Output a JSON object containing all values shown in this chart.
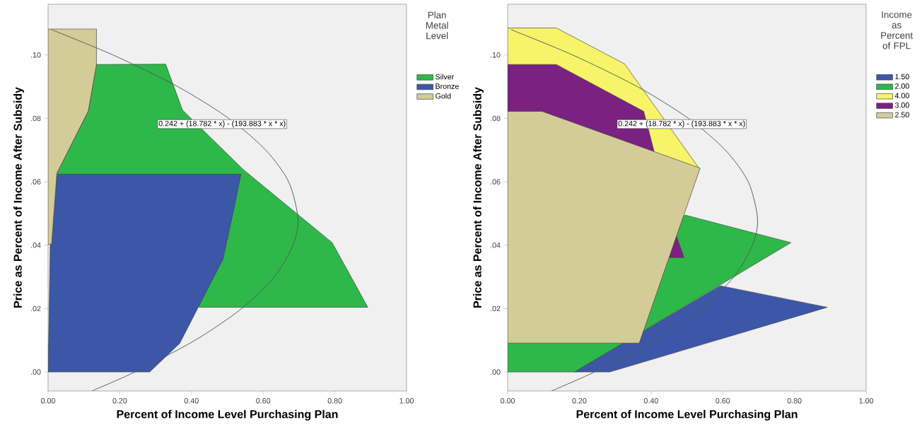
{
  "chart_data": [
    {
      "type": "area",
      "xlabel": "Percent of Income Level Purchasing Plan",
      "ylabel": "Price as Percent of Income After Subsidy",
      "legend_title": "Plan Metal Level",
      "legend": "right",
      "grid": false,
      "annotations": [
        "0.242 + (18.782 * x) - (193.883 * x * x)"
      ],
      "xlim": [
        0,
        1
      ],
      "ylim": [
        -0.006,
        0.116
      ],
      "xticks": [
        {
          "value": 0,
          "label": "0.00"
        },
        {
          "value": 0.2,
          "label": "0.20"
        },
        {
          "value": 0.4,
          "label": "0.40"
        },
        {
          "value": 0.6,
          "label": "0.60"
        },
        {
          "value": 0.8,
          "label": "0.80"
        },
        {
          "value": 1,
          "label": "1.00"
        }
      ],
      "yticks": [
        {
          "value": 0,
          "label": ".00"
        },
        {
          "value": 0.02,
          "label": ".02"
        },
        {
          "value": 0.04,
          "label": ".04"
        },
        {
          "value": 0.06,
          "label": ".06"
        },
        {
          "value": 0.08,
          "label": ".08"
        },
        {
          "value": 0.1,
          "label": ".10"
        }
      ],
      "series": [
        {
          "name": "Silver",
          "color": "#2eb84a",
          "x": [
            0.135,
            0.328,
            0.375,
            0.545,
            0.7925,
            0.892,
            0.422,
            0.0245,
            0.112
          ],
          "values": [
            0.097,
            0.0971,
            0.0826,
            0.0638,
            0.0408,
            0.0204,
            0.0204,
            0.0627,
            0.0823
          ]
        },
        {
          "name": "Bronze",
          "color": "#3c57a8",
          "x": [
            0,
            0.2835,
            0.367,
            0.488,
            0.52,
            0.538,
            0.0245,
            0.006
          ],
          "values": [
            0,
            0,
            0.009,
            0.0356,
            0.0524,
            0.0624,
            0.0624,
            0.0403
          ]
        },
        {
          "name": "Gold",
          "color": "#d4cc98",
          "x": [
            0,
            0.135,
            0.135,
            0.112,
            0.0245,
            0.0098,
            0
          ],
          "values": [
            0.1082,
            0.1082,
            0.097,
            0.0823,
            0.0627,
            0.0403,
            0.0403
          ]
        },
        {
          "type": "line",
          "color": "#555555",
          "x": [
            0.122,
            0.242,
            0.41,
            0.54,
            0.631,
            0.683,
            0.697,
            0.671,
            0.607,
            0.504,
            0.362,
            0.181,
            0.009
          ],
          "values": [
            -0.006,
            0,
            0.01,
            0.02,
            0.03,
            0.04,
            0.0484,
            0.06,
            0.07,
            0.08,
            0.09,
            0.1,
            0.108
          ]
        }
      ]
    },
    {
      "type": "area",
      "xlabel": "Percent of Income Level Purchasing Plan",
      "ylabel": "Price as Percent of Income After Subsidy",
      "legend_title": "Income as Percent of FPL",
      "legend": "right",
      "grid": false,
      "annotations": [
        "0.242 + (18.782 * x) - (193.883 * x * x)"
      ],
      "xlim": [
        0,
        1
      ],
      "ylim": [
        -0.006,
        0.116
      ],
      "xticks": [
        {
          "value": 0,
          "label": "0.00"
        },
        {
          "value": 0.2,
          "label": "0.20"
        },
        {
          "value": 0.4,
          "label": "0.40"
        },
        {
          "value": 0.6,
          "label": "0.60"
        },
        {
          "value": 0.8,
          "label": "0.80"
        },
        {
          "value": 1,
          "label": "1.00"
        }
      ],
      "yticks": [
        {
          "value": 0,
          "label": ".00"
        },
        {
          "value": 0.02,
          "label": ".02"
        },
        {
          "value": 0.04,
          "label": ".04"
        },
        {
          "value": 0.06,
          "label": ".06"
        },
        {
          "value": 0.08,
          "label": ".08"
        },
        {
          "value": 0.1,
          "label": ".10"
        }
      ],
      "series": [
        {
          "name": "1.50",
          "color": "#3c57a8",
          "x": [
            0.1865,
            0.285,
            0.8915,
            0.593
          ],
          "values": [
            0,
            0,
            0.0204,
            0.0272
          ]
        },
        {
          "name": "2.00",
          "color": "#2eb84a",
          "x": [
            0,
            0.1865,
            0.79,
            0.495,
            0
          ],
          "values": [
            0,
            0,
            0.0408,
            0.0495,
            0.009
          ]
        },
        {
          "name": "4.00",
          "color": "#f8f46a",
          "x": [
            0,
            0.1356,
            0.326,
            0.536,
            0
          ],
          "values": [
            0.1085,
            0.1085,
            0.0972,
            0.0639,
            0.06
          ]
        },
        {
          "name": "3.00",
          "color": "#7b2182",
          "x": [
            0,
            0.1356,
            0.3796,
            0.408,
            0.4725,
            0.492,
            0.452,
            0
          ],
          "values": [
            0.097,
            0.097,
            0.0822,
            0.0698,
            0.0423,
            0.0361,
            0.0361,
            0.06
          ]
        },
        {
          "name": "2.50",
          "color": "#d4cc98",
          "x": [
            0,
            0.096,
            0.537,
            0.367,
            0
          ],
          "values": [
            0.0822,
            0.0822,
            0.0643,
            0.0091,
            0.0091
          ]
        },
        {
          "type": "line",
          "color": "#555555",
          "x": [
            0.122,
            0.242,
            0.41,
            0.54,
            0.631,
            0.683,
            0.697,
            0.671,
            0.607,
            0.504,
            0.362,
            0.181,
            0.009
          ],
          "values": [
            -0.006,
            0,
            0.01,
            0.02,
            0.03,
            0.04,
            0.0484,
            0.06,
            0.07,
            0.08,
            0.09,
            0.1,
            0.108
          ]
        }
      ]
    }
  ]
}
